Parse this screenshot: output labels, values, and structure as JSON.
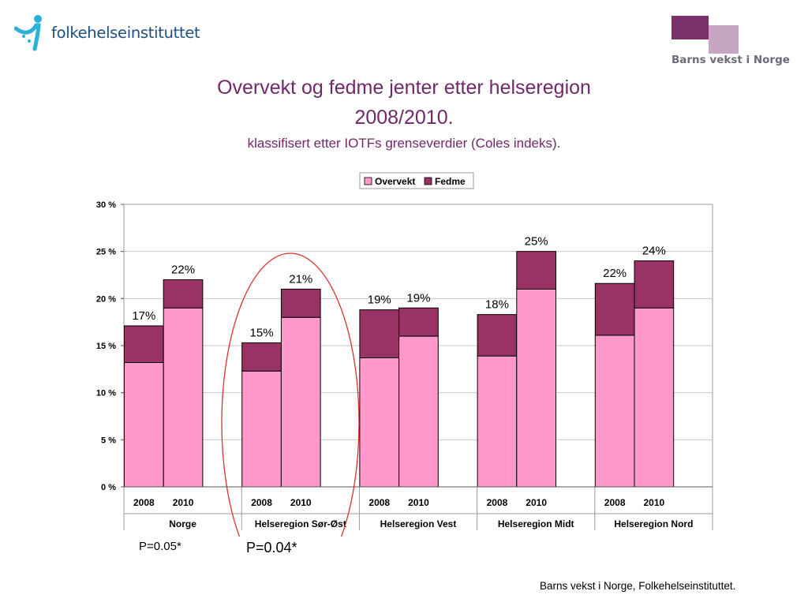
{
  "header": {
    "fhi_logo_text": "folkehelseinstituttet",
    "bvn_logo_text": "Barns vekst i Norge"
  },
  "slide": {
    "title_line1": "Overvekt og fedme jenter etter helseregion",
    "title_line2": "2008/2010.",
    "subtitle": "klassifisert etter IOTFs grenseverdier (Coles indeks).",
    "p_note_norge": "P=0.05*",
    "p_note_sorost": "P=0.04*",
    "source": "Barns vekst i Norge, Folkehelseinstituttet."
  },
  "colors": {
    "overvekt": "#ff99cc",
    "fedme": "#993366",
    "title": "#70286a",
    "ellipse": "#d8322e"
  },
  "chart_data": {
    "type": "bar",
    "stacked": true,
    "groups": [
      "Norge",
      "Helseregion Sør-Øst",
      "Helseregion Vest",
      "Helseregion Midt",
      "Helseregion Nord"
    ],
    "years": [
      "2008",
      "2010"
    ],
    "series": [
      {
        "name": "Overvekt",
        "values": [
          13.2,
          19.0,
          12.3,
          18.0,
          13.7,
          16.0,
          13.9,
          21.0,
          16.1,
          19.0
        ]
      },
      {
        "name": "Fedme",
        "values": [
          3.9,
          3.0,
          3.0,
          3.0,
          5.1,
          3.0,
          4.4,
          4.0,
          5.5,
          5.0
        ]
      }
    ],
    "data_labels": [
      "17%",
      "22%",
      "15%",
      "21%",
      "19%",
      "19%",
      "18%",
      "25%",
      "22%",
      "24%"
    ],
    "ylim": [
      0,
      30
    ],
    "yticks": [
      0,
      5,
      10,
      15,
      20,
      25,
      30
    ],
    "ytick_labels": [
      "0 %",
      "5 %",
      "10 %",
      "15 %",
      "20 %",
      "25 %",
      "30 %"
    ],
    "grid": true,
    "legend_position": "top"
  }
}
